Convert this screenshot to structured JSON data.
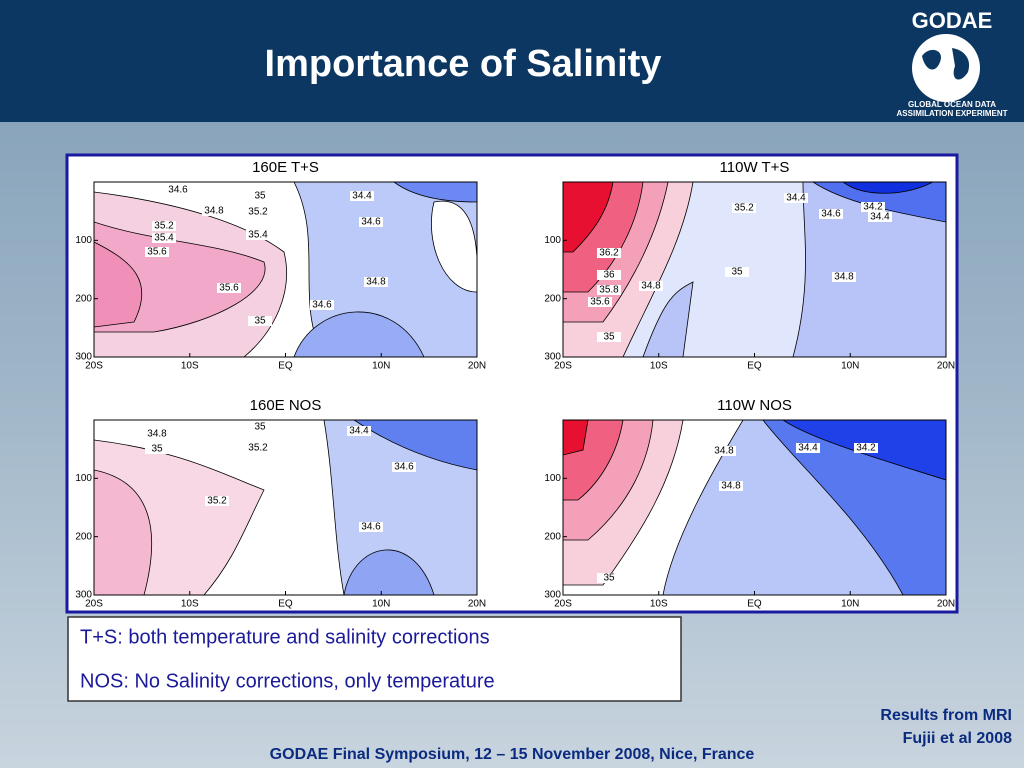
{
  "header": {
    "title": "Importance of Salinity"
  },
  "logo": {
    "name": "GODAE",
    "line1": "GLOBAL OCEAN DATA",
    "line2": "ASSIMILATION EXPERIMENT"
  },
  "panels": [
    {
      "title": "160E T+S",
      "xticks": [
        "20S",
        "10S",
        "EQ",
        "10N",
        "20N"
      ],
      "yticks": [
        "100",
        "200",
        "300"
      ],
      "contour_labels": [
        "34.6",
        "35",
        "34.8",
        "35.2",
        "34.4",
        "35.2",
        "35.4",
        "34.6",
        "35.4",
        "35.6",
        "35.6",
        "34.8",
        "34.6",
        "35"
      ]
    },
    {
      "title": "110W T+S",
      "xticks": [
        "20S",
        "10S",
        "EQ",
        "10N",
        "20N"
      ],
      "yticks": [
        "100",
        "200",
        "300"
      ],
      "contour_labels": [
        "34.4",
        "34.2",
        "35.2",
        "34.6",
        "34.4",
        "36.2",
        "35",
        "34.8",
        "36",
        "35.8",
        "34.8",
        "35.6",
        "35"
      ]
    },
    {
      "title": "160E NOS",
      "xticks": [
        "20S",
        "10S",
        "EQ",
        "10N",
        "20N"
      ],
      "yticks": [
        "100",
        "200",
        "300"
      ],
      "contour_labels": [
        "35",
        "34.4",
        "34.8",
        "35",
        "35.2",
        "34.6",
        "35.2",
        "34.6"
      ]
    },
    {
      "title": "110W NOS",
      "xticks": [
        "20S",
        "10S",
        "EQ",
        "10N",
        "20N"
      ],
      "yticks": [
        "100",
        "200",
        "300"
      ],
      "contour_labels": [
        "34.4",
        "34.2",
        "34.8",
        "34.8",
        "35"
      ]
    }
  ],
  "legend": [
    "T+S: both temperature and salinity corrections",
    "NOS: No Salinity corrections, only temperature"
  ],
  "credits": [
    "Results from MRI",
    "Fujii et al 2008"
  ],
  "footer": "GODAE Final Symposium, 12 – 15 November 2008, Nice, France"
}
